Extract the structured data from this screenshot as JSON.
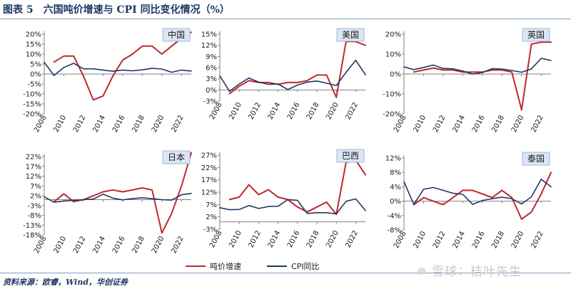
{
  "figure": {
    "title": "图表 5　六国吨价增速与 CPI 同比变化情况（%）",
    "source": "资料来源：欧睿，Wind，华创证券",
    "watermark": "⛯ 雪球：桔叶先生"
  },
  "legend": {
    "series1": "吨价增速",
    "series2": "CPI同比"
  },
  "colors": {
    "series1": "#c0282d",
    "series2": "#1f3864",
    "title_box": "#dce6f2",
    "grid": "#d9d9d9"
  },
  "chart_data": [
    {
      "type": "line",
      "title": "中国",
      "x_ticks": [
        "2008",
        "2010",
        "2012",
        "2014",
        "2016",
        "2018",
        "2020",
        "2022"
      ],
      "y_ticks": [
        "20%",
        "15%",
        "10%",
        "5%",
        "0%",
        "-5%",
        "-10%",
        "-15%",
        "-20%"
      ],
      "ylim": [
        -20,
        20
      ],
      "series": [
        {
          "name": "吨价增速",
          "x": [
            2009,
            2010,
            2011,
            2012,
            2013,
            2014,
            2015,
            2016,
            2017,
            2018,
            2019,
            2020,
            2021,
            2022,
            2023
          ],
          "values": [
            6,
            9,
            9,
            -1,
            -13,
            -11,
            -1,
            7,
            10,
            14,
            14,
            10,
            14,
            18,
            21
          ]
        },
        {
          "name": "CPI同比",
          "x": [
            2008,
            2009,
            2010,
            2011,
            2012,
            2013,
            2014,
            2015,
            2016,
            2017,
            2018,
            2019,
            2020,
            2021,
            2022,
            2023
          ],
          "values": [
            5.9,
            -0.7,
            3.3,
            5.4,
            2.6,
            2.6,
            2.0,
            1.4,
            2.0,
            1.6,
            2.1,
            2.9,
            2.5,
            0.9,
            2.0,
            1.5
          ]
        }
      ]
    },
    {
      "type": "line",
      "title": "美国",
      "x_ticks": [
        "2008",
        "2010",
        "2012",
        "2014",
        "2016",
        "2018",
        "2020",
        "2022"
      ],
      "y_ticks": [
        "15%",
        "12%",
        "9%",
        "6%",
        "3%",
        "0%",
        "-3%"
      ],
      "ylim": [
        -3,
        15
      ],
      "series": [
        {
          "name": "吨价增速",
          "x": [
            2009,
            2010,
            2011,
            2012,
            2013,
            2014,
            2015,
            2016,
            2017,
            2018,
            2019,
            2020,
            2021,
            2022,
            2023
          ],
          "values": [
            -1,
            1,
            2.5,
            2,
            2,
            1.5,
            2,
            2,
            2.5,
            4,
            4,
            -2,
            13,
            13,
            12
          ]
        },
        {
          "name": "CPI同比",
          "x": [
            2008,
            2009,
            2010,
            2011,
            2012,
            2013,
            2014,
            2015,
            2016,
            2017,
            2018,
            2019,
            2020,
            2021,
            2022,
            2023
          ],
          "values": [
            3.8,
            -0.4,
            1.6,
            3.2,
            2.1,
            1.5,
            1.6,
            0.1,
            1.3,
            2.1,
            2.4,
            1.8,
            1.2,
            4.7,
            8.0,
            4.1
          ]
        }
      ]
    },
    {
      "type": "line",
      "title": "英国",
      "x_ticks": [
        "2008",
        "2010",
        "2012",
        "2014",
        "2016",
        "2018",
        "2020",
        "2022"
      ],
      "y_ticks": [
        "20%",
        "10%",
        "0%",
        "-10%",
        "-20%"
      ],
      "ylim": [
        -20,
        20
      ],
      "series": [
        {
          "name": "吨价增速",
          "x": [
            2009,
            2010,
            2011,
            2012,
            2013,
            2014,
            2015,
            2016,
            2017,
            2018,
            2019,
            2020,
            2021,
            2022,
            2023
          ],
          "values": [
            1,
            2,
            3,
            2,
            2,
            1,
            1,
            1,
            2,
            2,
            1,
            -18,
            15,
            16,
            16
          ]
        },
        {
          "name": "CPI同比",
          "x": [
            2008,
            2009,
            2010,
            2011,
            2012,
            2013,
            2014,
            2015,
            2016,
            2017,
            2018,
            2019,
            2020,
            2021,
            2022,
            2023
          ],
          "values": [
            3.6,
            2.2,
            3.3,
            4.5,
            2.8,
            2.6,
            1.5,
            0.0,
            0.7,
            2.7,
            2.5,
            1.8,
            0.9,
            2.6,
            7.9,
            6.8
          ]
        }
      ]
    },
    {
      "type": "line",
      "title": "日本",
      "x_ticks": [
        "2008",
        "2010",
        "2012",
        "2014",
        "2016",
        "2018",
        "2020",
        "2022"
      ],
      "y_ticks": [
        "22%",
        "17%",
        "12%",
        "7%",
        "2%",
        "-3%",
        "-8%",
        "-13%",
        "-18%"
      ],
      "ylim": [
        -18,
        22
      ],
      "series": [
        {
          "name": "吨价增速",
          "x": [
            2009,
            2010,
            2011,
            2012,
            2013,
            2014,
            2015,
            2016,
            2017,
            2018,
            2019,
            2020,
            2021,
            2022,
            2023
          ],
          "values": [
            -1,
            3,
            -1,
            0,
            2,
            4,
            5,
            4,
            5,
            6,
            5,
            -17,
            -7,
            7,
            24
          ]
        },
        {
          "name": "CPI同比",
          "x": [
            2008,
            2009,
            2010,
            2011,
            2012,
            2013,
            2014,
            2015,
            2016,
            2017,
            2018,
            2019,
            2020,
            2021,
            2022,
            2023
          ],
          "values": [
            1.4,
            -1.3,
            -0.7,
            -0.3,
            0.0,
            0.3,
            2.8,
            0.8,
            -0.1,
            0.5,
            1.0,
            0.5,
            0.0,
            -0.2,
            2.5,
            3.2
          ]
        }
      ]
    },
    {
      "type": "line",
      "title": "巴西",
      "x_ticks": [
        "2008",
        "2010",
        "2012",
        "2014",
        "2016",
        "2018",
        "2020",
        "2022"
      ],
      "y_ticks": [
        "27%",
        "22%",
        "17%",
        "12%",
        "7%",
        "2%",
        "-3%"
      ],
      "ylim": [
        -3,
        27
      ],
      "series": [
        {
          "name": "吨价增速",
          "x": [
            2009,
            2010,
            2011,
            2012,
            2013,
            2014,
            2015,
            2016,
            2017,
            2018,
            2019,
            2020,
            2021,
            2022,
            2023
          ],
          "values": [
            9,
            10,
            15,
            11,
            13,
            10,
            9,
            6,
            4,
            6,
            8,
            3,
            24,
            25,
            19
          ]
        },
        {
          "name": "CPI同比",
          "x": [
            2008,
            2009,
            2010,
            2011,
            2012,
            2013,
            2014,
            2015,
            2016,
            2017,
            2018,
            2019,
            2020,
            2021,
            2022,
            2023
          ],
          "values": [
            5.7,
            4.9,
            5.0,
            6.6,
            5.4,
            6.2,
            6.3,
            9.0,
            8.7,
            3.4,
            3.7,
            3.7,
            3.2,
            8.3,
            9.3,
            4.6
          ]
        }
      ]
    },
    {
      "type": "line",
      "title": "泰国",
      "x_ticks": [
        "2008",
        "2010",
        "2012",
        "2014",
        "2016",
        "2018",
        "2020",
        "2022"
      ],
      "y_ticks": [
        "12%",
        "8%",
        "4%",
        "0%",
        "-4%",
        "-8%"
      ],
      "ylim": [
        -8,
        12
      ],
      "series": [
        {
          "name": "吨价增速",
          "x": [
            2009,
            2010,
            2011,
            2012,
            2013,
            2014,
            2015,
            2016,
            2017,
            2018,
            2019,
            2020,
            2021,
            2022,
            2023
          ],
          "values": [
            -1,
            1,
            0,
            -1,
            1,
            3,
            3,
            2,
            1,
            3,
            1,
            -5,
            -3,
            2,
            8
          ]
        },
        {
          "name": "CPI同比",
          "x": [
            2008,
            2009,
            2010,
            2011,
            2012,
            2013,
            2014,
            2015,
            2016,
            2017,
            2018,
            2019,
            2020,
            2021,
            2022,
            2023
          ],
          "values": [
            5.4,
            -0.9,
            3.3,
            3.8,
            3.0,
            2.2,
            1.9,
            -0.9,
            0.2,
            0.7,
            1.1,
            0.7,
            -0.8,
            1.2,
            6.1,
            4.0
          ]
        }
      ]
    }
  ]
}
